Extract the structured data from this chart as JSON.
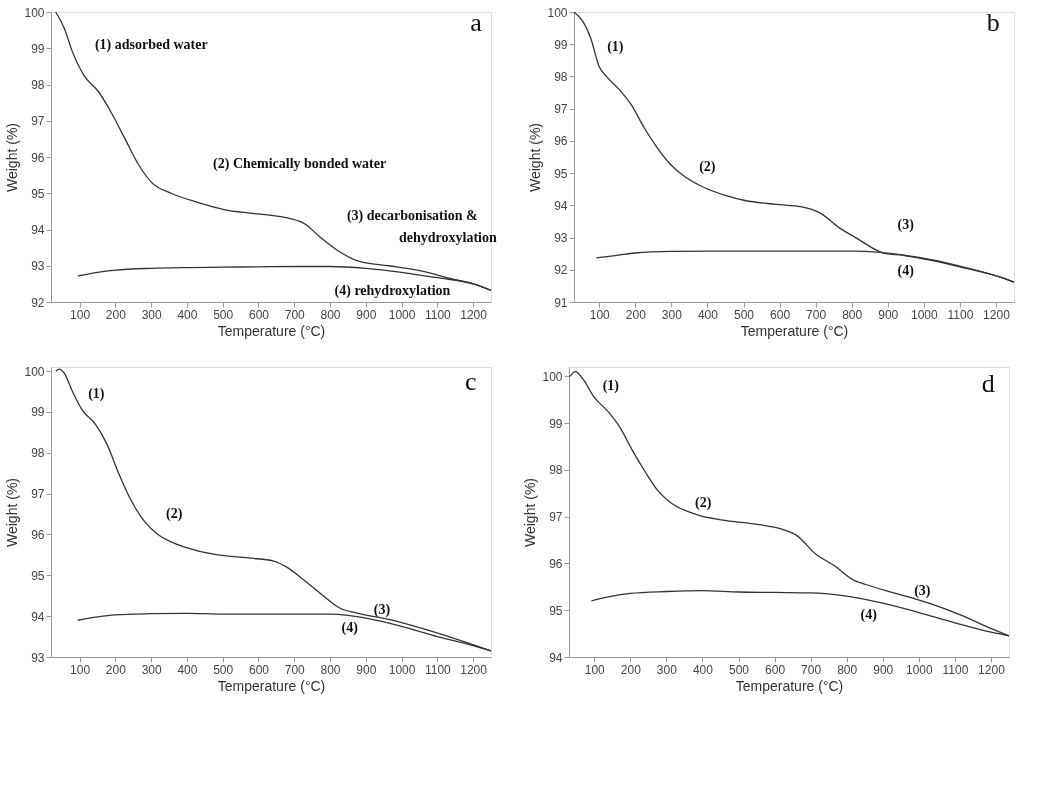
{
  "chart_data": [
    {
      "type": "line",
      "title": "a",
      "xlabel": "Temperature (°C)",
      "ylabel": "Weight (%)",
      "xlim": [
        20,
        1250
      ],
      "ylim": [
        92,
        100
      ],
      "xticks": [
        100,
        200,
        300,
        400,
        500,
        600,
        700,
        800,
        900,
        1000,
        1100,
        1200
      ],
      "yticks": [
        92,
        93,
        94,
        95,
        96,
        97,
        98,
        99,
        100
      ],
      "grid": false,
      "legend": false,
      "marker": "none",
      "line_style": "solid",
      "series": [
        {
          "color": "#333333",
          "x": [
            33,
            57,
            80,
            112,
            153,
            186,
            227,
            264,
            301,
            356,
            430,
            504,
            578,
            642,
            688,
            730,
            771,
            817,
            882,
            965,
            1057,
            1149,
            1195,
            1250
          ],
          "values": [
            100.0,
            99.55,
            98.9,
            98.25,
            97.8,
            97.27,
            96.5,
            95.8,
            95.3,
            95.0,
            94.75,
            94.55,
            94.45,
            94.38,
            94.3,
            94.15,
            93.8,
            93.45,
            93.12,
            93.0,
            92.85,
            92.62,
            92.52,
            92.32
          ]
        },
        {
          "color": "#333333",
          "x": [
            95,
            150,
            200,
            300,
            400,
            500,
            600,
            700,
            800,
            900,
            1000,
            1100,
            1200,
            1250
          ],
          "values": [
            92.72,
            92.82,
            92.88,
            92.93,
            92.95,
            92.96,
            92.97,
            92.98,
            92.98,
            92.93,
            92.82,
            92.67,
            92.5,
            92.32
          ]
        }
      ],
      "annotations": [
        "(1) adsorbed water",
        "(2) Chemically bonded water",
        "(3) decarbonisation &",
        "dehydroxylation",
        "(4) rehydroxylation"
      ]
    },
    {
      "type": "line",
      "title": "b",
      "xlabel": "Temperature (°C)",
      "ylabel": "Weight (%)",
      "xlim": [
        30,
        1250
      ],
      "ylim": [
        91,
        100
      ],
      "xticks": [
        100,
        200,
        300,
        400,
        500,
        600,
        700,
        800,
        900,
        1000,
        1100,
        1200
      ],
      "yticks": [
        91,
        92,
        93,
        94,
        95,
        96,
        97,
        98,
        99,
        100
      ],
      "grid": false,
      "legend": false,
      "marker": "none",
      "line_style": "solid",
      "series": [
        {
          "color": "#333333",
          "x": [
            30,
            55,
            76,
            100,
            120,
            155,
            190,
            225,
            260,
            295,
            330,
            382,
            452,
            504,
            591,
            661,
            714,
            766,
            818,
            862,
            888,
            941,
            1028,
            1115,
            1203,
            1250
          ],
          "values": [
            100.0,
            99.7,
            99.2,
            98.3,
            98.0,
            97.6,
            97.1,
            96.4,
            95.8,
            95.3,
            94.95,
            94.6,
            94.3,
            94.15,
            94.03,
            93.95,
            93.75,
            93.3,
            92.95,
            92.65,
            92.52,
            92.45,
            92.28,
            92.05,
            91.8,
            91.62
          ]
        },
        {
          "color": "#333333",
          "x": [
            92,
            150,
            200,
            300,
            400,
            500,
            600,
            700,
            800,
            880,
            950,
            1028,
            1115,
            1203,
            1250
          ],
          "values": [
            92.37,
            92.45,
            92.52,
            92.57,
            92.58,
            92.58,
            92.58,
            92.58,
            92.58,
            92.54,
            92.45,
            92.3,
            92.07,
            91.8,
            91.62
          ]
        }
      ],
      "annotations": [
        "(1)",
        "(2)",
        "(3)",
        "(4)"
      ]
    },
    {
      "type": "line",
      "title": "c",
      "xlabel": "Temperature (°C)",
      "ylabel": "Weight (%)",
      "xlim": [
        20,
        1250
      ],
      "ylim": [
        93,
        100.1
      ],
      "xticks": [
        100,
        200,
        300,
        400,
        500,
        600,
        700,
        800,
        900,
        1000,
        1100,
        1200
      ],
      "yticks": [
        93,
        94,
        95,
        96,
        97,
        98,
        99,
        100
      ],
      "grid": false,
      "legend": false,
      "marker": "none",
      "line_style": "solid",
      "series": [
        {
          "color": "#333333",
          "x": [
            34,
            43,
            57,
            80,
            107,
            144,
            177,
            209,
            246,
            283,
            319,
            375,
            430,
            504,
            578,
            642,
            679,
            725,
            781,
            827,
            873,
            965,
            1057,
            1149,
            1250
          ],
          "values": [
            100.0,
            100.05,
            99.95,
            99.5,
            99.05,
            98.7,
            98.2,
            97.5,
            96.8,
            96.3,
            96.0,
            95.75,
            95.6,
            95.48,
            95.42,
            95.35,
            95.2,
            94.9,
            94.5,
            94.2,
            94.08,
            93.92,
            93.7,
            93.45,
            93.15
          ]
        },
        {
          "color": "#333333",
          "x": [
            95,
            150,
            200,
            300,
            400,
            500,
            600,
            700,
            800,
            850,
            900,
            1000,
            1100,
            1200,
            1250
          ],
          "values": [
            93.9,
            93.98,
            94.03,
            94.06,
            94.07,
            94.05,
            94.05,
            94.05,
            94.05,
            94.02,
            93.95,
            93.75,
            93.5,
            93.28,
            93.15
          ]
        }
      ],
      "annotations": [
        "(1)",
        "(2)",
        "(3)",
        "(4)"
      ]
    },
    {
      "type": "line",
      "title": "d",
      "xlabel": "Temperature (°C)",
      "ylabel": "Weight (%)",
      "xlim": [
        30,
        1250
      ],
      "ylim": [
        94,
        100.2
      ],
      "xticks": [
        100,
        200,
        300,
        400,
        500,
        600,
        700,
        800,
        900,
        1000,
        1100,
        1200
      ],
      "yticks": [
        94,
        95,
        96,
        97,
        98,
        99,
        100
      ],
      "grid": false,
      "legend": false,
      "marker": "none",
      "line_style": "solid",
      "series": [
        {
          "color": "#333333",
          "x": [
            33,
            48,
            68,
            100,
            138,
            172,
            207,
            242,
            277,
            312,
            382,
            452,
            557,
            626,
            661,
            714,
            766,
            818,
            853,
            941,
            1028,
            1115,
            1203,
            1250
          ],
          "values": [
            100.0,
            100.1,
            99.95,
            99.55,
            99.25,
            98.9,
            98.4,
            97.95,
            97.55,
            97.3,
            97.05,
            96.93,
            96.83,
            96.72,
            96.6,
            96.2,
            95.95,
            95.65,
            95.55,
            95.35,
            95.15,
            94.9,
            94.6,
            94.45
          ]
        },
        {
          "color": "#333333",
          "x": [
            92,
            150,
            200,
            300,
            400,
            500,
            600,
            700,
            800,
            900,
            1000,
            1100,
            1200,
            1250
          ],
          "values": [
            95.2,
            95.3,
            95.36,
            95.4,
            95.42,
            95.39,
            95.38,
            95.37,
            95.3,
            95.15,
            94.95,
            94.73,
            94.53,
            94.45
          ]
        }
      ],
      "annotations": [
        "(1)",
        "(2)",
        "(3)",
        "(4)"
      ]
    }
  ]
}
